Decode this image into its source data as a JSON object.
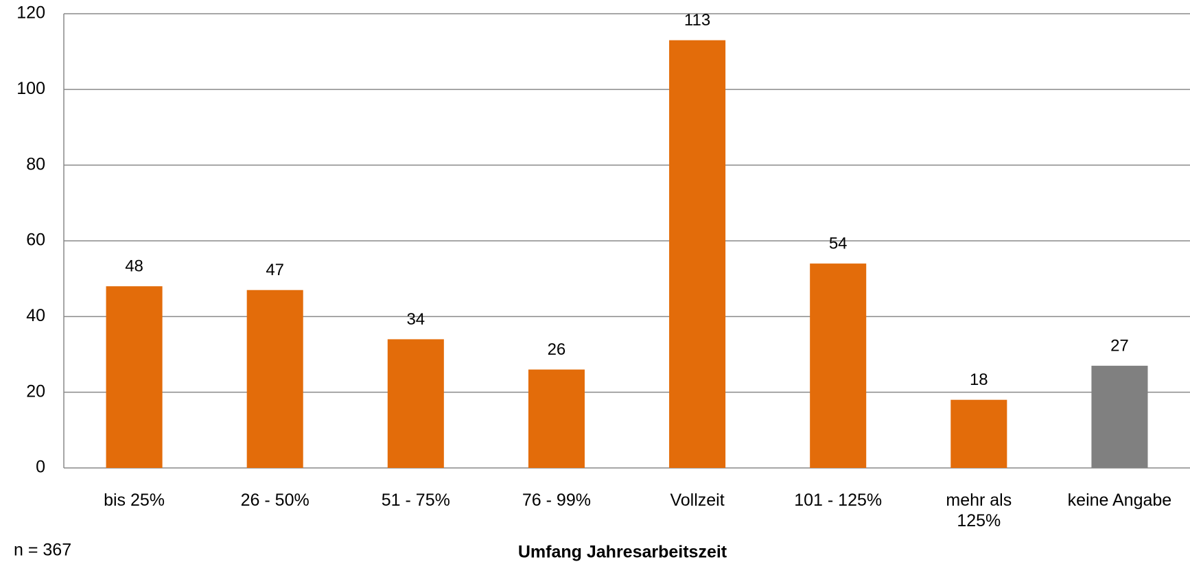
{
  "chart_data": {
    "type": "bar",
    "categories": [
      "bis 25%",
      "26 - 50%",
      "51 - 75%",
      "76 - 99%",
      "Vollzeit",
      "101 - 125%",
      "mehr als\n125%",
      "keine Angabe"
    ],
    "values": [
      48,
      47,
      34,
      26,
      113,
      54,
      18,
      27
    ],
    "colors": [
      "#e36c0a",
      "#e36c0a",
      "#e36c0a",
      "#e36c0a",
      "#e36c0a",
      "#e36c0a",
      "#e36c0a",
      "#808080"
    ],
    "ylim": [
      0,
      120
    ],
    "yticks": [
      0,
      20,
      40,
      60,
      80,
      100,
      120
    ],
    "grid": true,
    "x_label": "Umfang Jahresarbeitszeit",
    "note": "n = 367"
  }
}
